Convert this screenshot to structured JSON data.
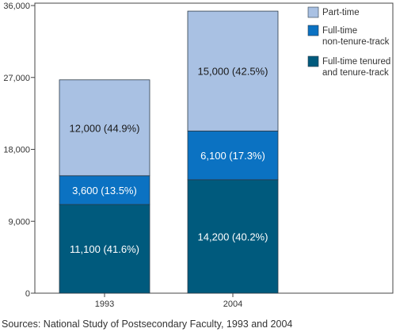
{
  "chart_data": {
    "type": "bar",
    "stacked": true,
    "categories": [
      "1993",
      "2004"
    ],
    "series": [
      {
        "name": "Full-time tenured and tenure-track",
        "legend_lines": [
          "Full-time tenured",
          "and tenure-track"
        ],
        "color": "#005a7d",
        "label_color": "#ffffff",
        "values": [
          11100,
          14200
        ],
        "labels": [
          "11,100  (41.6%)",
          "14,200  (40.2%)"
        ]
      },
      {
        "name": "Full-time non-tenure-track",
        "legend_lines": [
          "Full-time",
          "non-tenure-track"
        ],
        "color": "#0b72c2",
        "label_color": "#ffffff",
        "values": [
          3600,
          6100
        ],
        "labels": [
          "3,600  (13.5%)",
          "6,100  (17.3%)"
        ]
      },
      {
        "name": "Part-time",
        "legend_lines": [
          "Part-time"
        ],
        "color": "#a9c1e3",
        "label_color": "#1a1a1a",
        "values": [
          12000,
          15000
        ],
        "labels": [
          "12,000  (44.9%)",
          "15,000  (42.5%)"
        ]
      }
    ],
    "ylim": [
      0,
      36000
    ],
    "yticks": [
      0,
      9000,
      18000,
      27000,
      36000
    ],
    "ytick_labels": [
      "0",
      "9,000",
      "18,000",
      "27,000",
      "36,000"
    ],
    "legend_placement": "top-right",
    "grid": false
  },
  "source_note": "Sources: National Study of Postsecondary Faculty, 1993 and 2004"
}
